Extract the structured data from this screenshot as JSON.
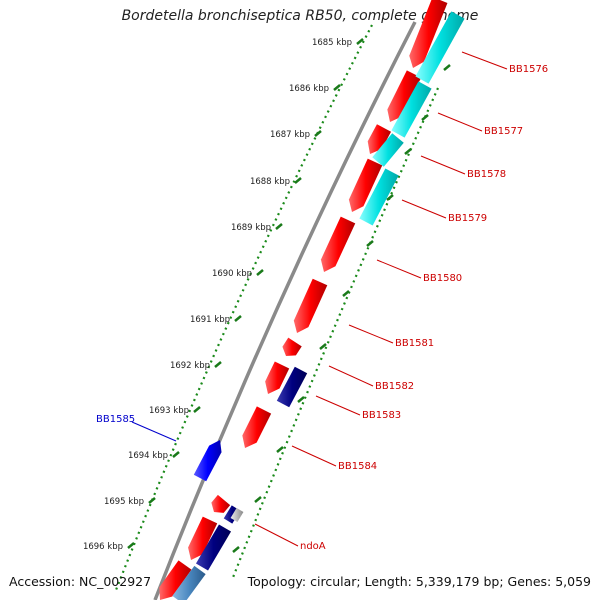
{
  "title": "Bordetella bronchiseptica RB50, complete genome",
  "footer": {
    "accession": "Accession: NC_002927",
    "summary": "Topology: circular; Length: 5,339,179 bp; Genes: 5,059"
  },
  "scale": {
    "unit": "kbp",
    "ticks": [
      "1685 kbp",
      "1686 kbp",
      "1687 kbp",
      "1688 kbp",
      "1689 kbp",
      "1690 kbp",
      "1691 kbp",
      "1692 kbp",
      "1693 kbp",
      "1694 kbp",
      "1695 kbp",
      "1696 kbp"
    ]
  },
  "genes": [
    {
      "name": "BB1576",
      "strand": "forward",
      "color": "#ff0000"
    },
    {
      "name": "BB1577",
      "strand": "forward",
      "color": "#ff0000"
    },
    {
      "name": "BB1578",
      "strand": "forward",
      "color": "#ff0000"
    },
    {
      "name": "BB1579",
      "strand": "forward",
      "color": "#ff0000"
    },
    {
      "name": "BB1580",
      "strand": "forward",
      "color": "#ff0000"
    },
    {
      "name": "BB1581",
      "strand": "forward",
      "color": "#ff0000"
    },
    {
      "name": "BB1582",
      "strand": "forward",
      "color": "#ff0000"
    },
    {
      "name": "BB1583",
      "strand": "forward",
      "color": "#ff0000"
    },
    {
      "name": "BB1584",
      "strand": "forward",
      "color": "#ff0000"
    },
    {
      "name": "ndoA",
      "strand": "forward",
      "color": "#ff0000"
    },
    {
      "name": "BB1585",
      "strand": "reverse",
      "color": "#0000ff"
    }
  ],
  "colors": {
    "backbone": "#888888",
    "cds_forward": "#ff0000",
    "cds_reverse": "#0000ff",
    "cyan_track": "#00e5e5",
    "navy_track": "#000080",
    "tick_green": "#1a7a1a"
  }
}
